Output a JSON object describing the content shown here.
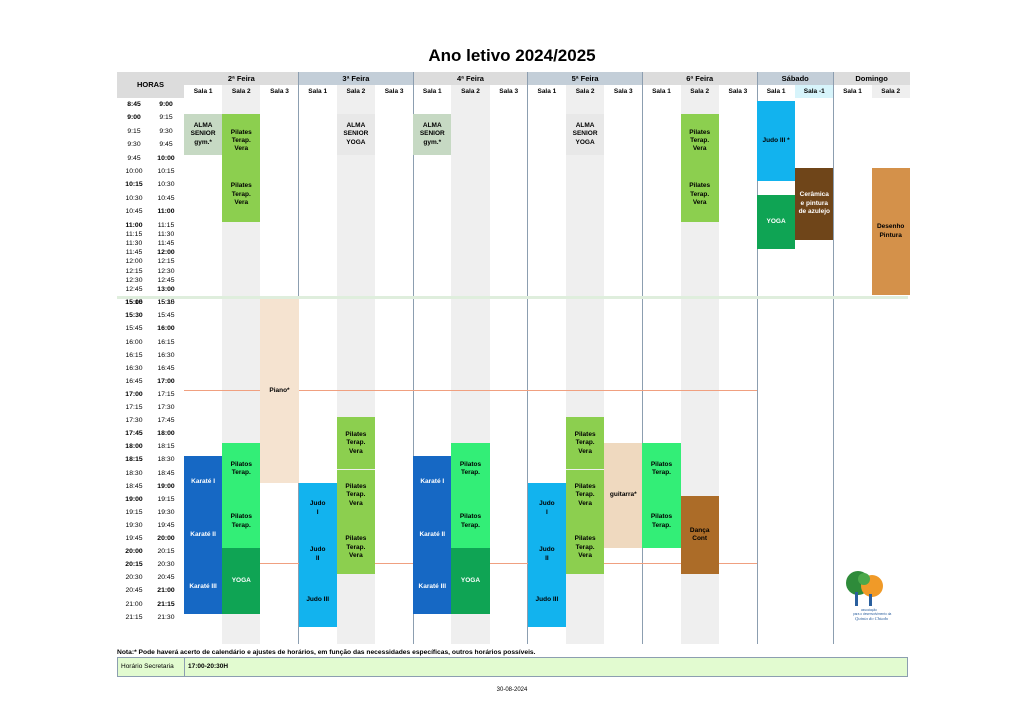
{
  "title": "Ano letivo 2024/2025",
  "hours_label": "HORAS",
  "days": [
    {
      "name": "2ª Feira",
      "rooms": [
        "Sala 1",
        "Sala 2",
        "Sala 3"
      ]
    },
    {
      "name": "3ª Feira",
      "rooms": [
        "Sala 1",
        "Sala 2",
        "Sala 3"
      ]
    },
    {
      "name": "4ª Feira",
      "rooms": [
        "Sala 1",
        "Sala 2",
        "Sala 3"
      ]
    },
    {
      "name": "5ª Feira",
      "rooms": [
        "Sala 1",
        "Sala 2",
        "Sala 3"
      ]
    },
    {
      "name": "6ª Feira",
      "rooms": [
        "Sala 1",
        "Sala 2",
        "Sala 3"
      ]
    },
    {
      "name": "Sábado",
      "rooms": [
        "Sala 1",
        "Sala -1"
      ]
    },
    {
      "name": "Domingo",
      "rooms": [
        "Sala 1",
        "Sala 2"
      ]
    }
  ],
  "time_rows": [
    {
      "start": "8:45",
      "end": "9:00",
      "bold_start": true,
      "bold_end": true
    },
    {
      "start": "9:00",
      "end": "9:15",
      "bold_start": true,
      "bold_end": false
    },
    {
      "start": "9:15",
      "end": "9:30",
      "bold_start": false,
      "bold_end": false
    },
    {
      "start": "9:30",
      "end": "9:45",
      "bold_start": false,
      "bold_end": false
    },
    {
      "start": "9:45",
      "end": "10:00",
      "bold_start": false,
      "bold_end": true
    },
    {
      "start": "10:00",
      "end": "10:15",
      "bold_start": false,
      "bold_end": false
    },
    {
      "start": "10:15",
      "end": "10:30",
      "bold_start": true,
      "bold_end": false
    },
    {
      "start": "10:30",
      "end": "10:45",
      "bold_start": false,
      "bold_end": false
    },
    {
      "start": "10:45",
      "end": "11:00",
      "bold_start": false,
      "bold_end": true
    },
    {
      "start": "11:00",
      "end": "11:15",
      "bold_start": true,
      "bold_end": false
    },
    {
      "start": "11:15",
      "end": "11:30",
      "bold_start": false,
      "bold_end": false
    },
    {
      "start": "11:30",
      "end": "11:45",
      "bold_start": false,
      "bold_end": false
    },
    {
      "start": "11:45",
      "end": "12:00",
      "bold_start": false,
      "bold_end": true
    },
    {
      "start": "12:00",
      "end": "12:15",
      "bold_start": false,
      "bold_end": false
    },
    {
      "start": "12:15",
      "end": "12:30",
      "bold_start": false,
      "bold_end": false
    },
    {
      "start": "12:30",
      "end": "12:45",
      "bold_start": false,
      "bold_end": false
    },
    {
      "start": "12:45",
      "end": "13:00",
      "bold_start": false,
      "bold_end": true
    },
    {
      "start": "15:00",
      "end": "15:15",
      "bold_start": true,
      "bold_end": false
    },
    {
      "start": "15:15",
      "end": "15:30",
      "bold_start": false,
      "bold_end": false
    },
    {
      "start": "15:30",
      "end": "15:45",
      "bold_start": true,
      "bold_end": false
    },
    {
      "start": "15:45",
      "end": "16:00",
      "bold_start": false,
      "bold_end": true
    },
    {
      "start": "16:00",
      "end": "16:15",
      "bold_start": false,
      "bold_end": false
    },
    {
      "start": "16:15",
      "end": "16:30",
      "bold_start": false,
      "bold_end": false
    },
    {
      "start": "16:30",
      "end": "16:45",
      "bold_start": false,
      "bold_end": false
    },
    {
      "start": "16:45",
      "end": "17:00",
      "bold_start": false,
      "bold_end": true
    },
    {
      "start": "17:00",
      "end": "17:15",
      "bold_start": true,
      "bold_end": false
    },
    {
      "start": "17:15",
      "end": "17:30",
      "bold_start": false,
      "bold_end": false
    },
    {
      "start": "17:30",
      "end": "17:45",
      "bold_start": false,
      "bold_end": false
    },
    {
      "start": "17:45",
      "end": "18:00",
      "bold_start": true,
      "bold_end": true
    },
    {
      "start": "18:00",
      "end": "18:15",
      "bold_start": true,
      "bold_end": false
    },
    {
      "start": "18:15",
      "end": "18:30",
      "bold_start": true,
      "bold_end": false
    },
    {
      "start": "18:30",
      "end": "18:45",
      "bold_start": false,
      "bold_end": false
    },
    {
      "start": "18:45",
      "end": "19:00",
      "bold_start": false,
      "bold_end": true
    },
    {
      "start": "19:00",
      "end": "19:15",
      "bold_start": true,
      "bold_end": false
    },
    {
      "start": "19:15",
      "end": "19:30",
      "bold_start": false,
      "bold_end": false
    },
    {
      "start": "19:30",
      "end": "19:45",
      "bold_start": false,
      "bold_end": false
    },
    {
      "start": "19:45",
      "end": "20:00",
      "bold_start": false,
      "bold_end": true
    },
    {
      "start": "20:00",
      "end": "20:15",
      "bold_start": true,
      "bold_end": false
    },
    {
      "start": "20:15",
      "end": "20:30",
      "bold_start": true,
      "bold_end": false
    },
    {
      "start": "20:30",
      "end": "20:45",
      "bold_start": false,
      "bold_end": false
    },
    {
      "start": "20:45",
      "end": "21:00",
      "bold_start": false,
      "bold_end": true
    },
    {
      "start": "21:00",
      "end": "21:15",
      "bold_start": false,
      "bold_end": true
    },
    {
      "start": "21:15",
      "end": "21:30",
      "bold_start": false,
      "bold_end": false
    }
  ],
  "activities": [
    {
      "day": 0,
      "room": 0,
      "from": "9:00",
      "to": "9:45",
      "label": "ALMA\nSENIOR\ngym.*",
      "color": "#c6d9c3"
    },
    {
      "day": 0,
      "room": 1,
      "from": "9:00",
      "to": "10:00",
      "label": "Pilates\nTerap.\nVera",
      "color": "#8ccf4f"
    },
    {
      "day": 0,
      "room": 1,
      "from": "10:00",
      "to": "11:00",
      "label": "Pilates\nTerap.\nVera",
      "color": "#8ccf4f"
    },
    {
      "day": 0,
      "room": 2,
      "from": "15:00",
      "to": "18:45",
      "label": "Piano*",
      "color": "#f5e3d0"
    },
    {
      "day": 0,
      "room": 1,
      "from": "18:00",
      "to": "19:00",
      "label": "Pilatos\nTerap.",
      "color": "#33ee77"
    },
    {
      "day": 0,
      "room": 1,
      "from": "19:00",
      "to": "20:00",
      "label": "Pilatos\nTerap.",
      "color": "#33ee77"
    },
    {
      "day": 0,
      "room": 1,
      "from": "20:00",
      "to": "21:15",
      "label": "YOGA",
      "color": "#0fa454"
    },
    {
      "day": 0,
      "room": 0,
      "from": "18:15",
      "to": "19:15",
      "label": "Karaté I",
      "color": "#1668c4"
    },
    {
      "day": 0,
      "room": 0,
      "from": "19:15",
      "to": "20:15",
      "label": "Karaté II",
      "color": "#1668c4"
    },
    {
      "day": 0,
      "room": 0,
      "from": "20:15",
      "to": "21:15",
      "label": "Karaté III",
      "color": "#1668c4"
    },
    {
      "day": 1,
      "room": 1,
      "from": "9:00",
      "to": "9:45",
      "label": "ALMA\nSENIOR\nYOGA",
      "color": "#e8e8e8"
    },
    {
      "day": 1,
      "room": 1,
      "from": "17:30",
      "to": "18:30",
      "label": "Pilates\nTerap.\nVera",
      "color": "#8ccf4f"
    },
    {
      "day": 1,
      "room": 1,
      "from": "18:30",
      "to": "19:30",
      "label": "Pilates\nTerap.\nVera",
      "color": "#8ccf4f"
    },
    {
      "day": 1,
      "room": 1,
      "from": "19:30",
      "to": "20:30",
      "label": "Pilates\nTerap.\nVera",
      "color": "#8ccf4f"
    },
    {
      "day": 1,
      "room": 0,
      "from": "18:45",
      "to": "19:45",
      "label": "Judo\nI",
      "color": "#12b3ee"
    },
    {
      "day": 1,
      "room": 0,
      "from": "19:45",
      "to": "20:30",
      "label": "Judo\nII",
      "color": "#12b3ee"
    },
    {
      "day": 1,
      "room": 0,
      "from": "20:30",
      "to": "21:30",
      "label": "Judo III",
      "color": "#12b3ee"
    },
    {
      "day": 2,
      "room": 0,
      "from": "9:00",
      "to": "9:45",
      "label": "ALMA\nSENIOR\ngym.*",
      "color": "#c6d9c3"
    },
    {
      "day": 2,
      "room": 1,
      "from": "18:00",
      "to": "19:00",
      "label": "Pilatos\nTerap.",
      "color": "#33ee77"
    },
    {
      "day": 2,
      "room": 1,
      "from": "19:00",
      "to": "20:00",
      "label": "Pilatos\nTerap.",
      "color": "#33ee77"
    },
    {
      "day": 2,
      "room": 1,
      "from": "20:00",
      "to": "21:15",
      "label": "YOGA",
      "color": "#0fa454"
    },
    {
      "day": 2,
      "room": 0,
      "from": "18:15",
      "to": "19:15",
      "label": "Karaté I",
      "color": "#1668c4"
    },
    {
      "day": 2,
      "room": 0,
      "from": "19:15",
      "to": "20:15",
      "label": "Karaté II",
      "color": "#1668c4"
    },
    {
      "day": 2,
      "room": 0,
      "from": "20:15",
      "to": "21:15",
      "label": "Karaté III",
      "color": "#1668c4"
    },
    {
      "day": 3,
      "room": 1,
      "from": "9:00",
      "to": "9:45",
      "label": "ALMA\nSENIOR\nYOGA",
      "color": "#e8e8e8"
    },
    {
      "day": 3,
      "room": 1,
      "from": "17:30",
      "to": "18:30",
      "label": "Pilates\nTerap.\nVera",
      "color": "#8ccf4f"
    },
    {
      "day": 3,
      "room": 1,
      "from": "18:30",
      "to": "19:30",
      "label": "Pilates\nTerap.\nVera",
      "color": "#8ccf4f"
    },
    {
      "day": 3,
      "room": 1,
      "from": "19:30",
      "to": "20:30",
      "label": "Pilates\nTerap.\nVera",
      "color": "#8ccf4f"
    },
    {
      "day": 3,
      "room": 2,
      "from": "18:00",
      "to": "20:00",
      "label": "guitarra*",
      "color": "#efd9bf"
    },
    {
      "day": 3,
      "room": 0,
      "from": "18:45",
      "to": "19:45",
      "label": "Judo\nI",
      "color": "#12b3ee"
    },
    {
      "day": 3,
      "room": 0,
      "from": "19:45",
      "to": "20:30",
      "label": "Judo\nII",
      "color": "#12b3ee"
    },
    {
      "day": 3,
      "room": 0,
      "from": "20:30",
      "to": "21:30",
      "label": "Judo III",
      "color": "#12b3ee"
    },
    {
      "day": 4,
      "room": 1,
      "from": "9:00",
      "to": "10:00",
      "label": "Pilates\nTerap.\nVera",
      "color": "#8ccf4f"
    },
    {
      "day": 4,
      "room": 1,
      "from": "10:00",
      "to": "11:00",
      "label": "Pilates\nTerap.\nVera",
      "color": "#8ccf4f"
    },
    {
      "day": 4,
      "room": 0,
      "from": "18:00",
      "to": "19:00",
      "label": "Pilatos\nTerap.",
      "color": "#33ee77"
    },
    {
      "day": 4,
      "room": 0,
      "from": "19:00",
      "to": "20:00",
      "label": "Pilatos\nTerap.",
      "color": "#33ee77"
    },
    {
      "day": 4,
      "room": 1,
      "from": "19:00",
      "to": "20:30",
      "label": "Dança\nCont",
      "color": "#ac6c28"
    },
    {
      "day": 5,
      "room": 0,
      "from": "8:45",
      "to": "10:15",
      "label": "Judo III *",
      "color": "#12b3ee"
    },
    {
      "day": 5,
      "room": 0,
      "from": "10:30",
      "to": "11:45",
      "label": "YOGA",
      "color": "#0fa454"
    },
    {
      "day": 5,
      "room": 1,
      "from": "10:00",
      "to": "11:30",
      "label": "Cerâmica\ne pintura\nde azulejo",
      "color": "#6f4519"
    },
    {
      "day": 6,
      "room": 1,
      "from": "10:00",
      "to": "13:00",
      "label": "Desenho\nPintura",
      "color": "#d4914a"
    }
  ],
  "note": "Nota:* Pode haverá acerto de calendário e ajustes de horários, em função das necessidades específicas, outros horários possíveis.",
  "secretaria": {
    "label": "Horário Secretaria",
    "value": "17:00-20:30H"
  },
  "footer_date": "30-08-2024",
  "logo": {
    "caption_line1": "associação",
    "caption_line2": "para o desenvolvimento da",
    "caption_line3": "Quinta do Chiado"
  }
}
